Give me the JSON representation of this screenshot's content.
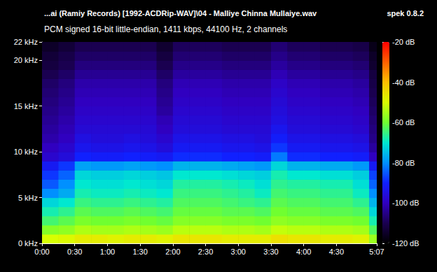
{
  "chart_data": {
    "type": "heatmap",
    "title": "...ai (Ramiy Records) [1992-ACDRip-WAV]\\04 - Malliye Chinna Mullaiye.wav",
    "subtitle": "PCM signed 16-bit little-endian, 1411 kbps, 44100 Hz, 2 channels",
    "annotations": [
      "spek 0.8.2"
    ],
    "grid": false,
    "xlim": [
      0,
      307
    ],
    "xticks": [
      {
        "value": 0,
        "label": "0:00"
      },
      {
        "value": 30,
        "label": "0:30"
      },
      {
        "value": 60,
        "label": "1:00"
      },
      {
        "value": 90,
        "label": "1:30"
      },
      {
        "value": 120,
        "label": "2:00"
      },
      {
        "value": 150,
        "label": "2:30"
      },
      {
        "value": 180,
        "label": "3:00"
      },
      {
        "value": 210,
        "label": "3:30"
      },
      {
        "value": 240,
        "label": "4:00"
      },
      {
        "value": 270,
        "label": "4:30"
      },
      {
        "value": 307,
        "label": "5:07"
      }
    ],
    "ylim": [
      0,
      22
    ],
    "yticks": [
      {
        "value": 0,
        "label": "0 kHz"
      },
      {
        "value": 5,
        "label": "5 kHz"
      },
      {
        "value": 10,
        "label": "10 kHz"
      },
      {
        "value": 15,
        "label": "15 kHz"
      },
      {
        "value": 20,
        "label": "20 kHz"
      },
      {
        "value": 22,
        "label": "22 kHz"
      }
    ],
    "colorbar_range": [
      -120,
      -20
    ],
    "colorbar_ticks": [
      {
        "value": -20,
        "label": "-20 dB"
      },
      {
        "value": -40,
        "label": "-40 dB"
      },
      {
        "value": -60,
        "label": "-60 dB"
      },
      {
        "value": -80,
        "label": "-80 dB"
      },
      {
        "value": -100,
        "label": "-100 dB"
      },
      {
        "value": -120,
        "label": "-120 dB"
      }
    ],
    "time_bins": [
      0,
      15,
      30,
      45,
      60,
      75,
      90,
      105,
      120,
      135,
      150,
      165,
      180,
      195,
      210,
      225,
      240,
      255,
      270,
      285,
      300,
      307
    ],
    "freq_bins": [
      0,
      1,
      2,
      3,
      4,
      5,
      6,
      7,
      8,
      9,
      10,
      11,
      12,
      13,
      14,
      15,
      16,
      17,
      18,
      19,
      20,
      21,
      22
    ],
    "cells": [
      [
        -50,
        -49,
        -47,
        -47,
        -48,
        -47,
        -47,
        -48,
        -46,
        -46,
        -46,
        -47,
        -47,
        -47,
        -45,
        -46,
        -46,
        -47,
        -47,
        -48,
        -56
      ],
      [
        -58,
        -57,
        -54,
        -55,
        -55,
        -54,
        -55,
        -56,
        -53,
        -53,
        -53,
        -54,
        -54,
        -55,
        -52,
        -53,
        -53,
        -54,
        -54,
        -55,
        -63
      ],
      [
        -64,
        -62,
        -59,
        -60,
        -60,
        -59,
        -60,
        -61,
        -58,
        -58,
        -58,
        -59,
        -59,
        -60,
        -57,
        -58,
        -58,
        -59,
        -59,
        -60,
        -68
      ],
      [
        -68,
        -66,
        -62,
        -63,
        -63,
        -62,
        -63,
        -64,
        -61,
        -61,
        -61,
        -62,
        -62,
        -63,
        -60,
        -61,
        -61,
        -62,
        -62,
        -63,
        -72
      ],
      [
        -72,
        -70,
        -65,
        -66,
        -66,
        -65,
        -66,
        -67,
        -63,
        -63,
        -63,
        -64,
        -65,
        -66,
        -62,
        -63,
        -63,
        -64,
        -64,
        -66,
        -76
      ],
      [
        -80,
        -77,
        -68,
        -69,
        -69,
        -68,
        -69,
        -70,
        -65,
        -65,
        -65,
        -66,
        -67,
        -69,
        -64,
        -65,
        -65,
        -66,
        -66,
        -69,
        -80
      ],
      [
        -85,
        -80,
        -70,
        -71,
        -71,
        -70,
        -71,
        -72,
        -67,
        -67,
        -67,
        -68,
        -69,
        -71,
        -66,
        -67,
        -67,
        -68,
        -68,
        -71,
        -84
      ],
      [
        -88,
        -84,
        -72,
        -73,
        -73,
        -72,
        -73,
        -74,
        -70,
        -70,
        -70,
        -71,
        -72,
        -73,
        -68,
        -70,
        -70,
        -71,
        -71,
        -73,
        -87
      ],
      [
        -92,
        -88,
        -78,
        -79,
        -79,
        -78,
        -79,
        -80,
        -76,
        -76,
        -76,
        -77,
        -78,
        -79,
        -72,
        -76,
        -76,
        -77,
        -77,
        -79,
        -92
      ],
      [
        -98,
        -96,
        -90,
        -91,
        -91,
        -90,
        -91,
        -92,
        -89,
        -89,
        -89,
        -90,
        -90,
        -91,
        -82,
        -89,
        -89,
        -90,
        -90,
        -91,
        -100
      ],
      [
        -100,
        -98,
        -93,
        -94,
        -94,
        -93,
        -94,
        -96,
        -92,
        -92,
        -92,
        -93,
        -93,
        -94,
        -88,
        -92,
        -92,
        -93,
        -93,
        -94,
        -103
      ],
      [
        -102,
        -100,
        -95,
        -96,
        -96,
        -95,
        -96,
        -98,
        -94,
        -94,
        -94,
        -95,
        -95,
        -96,
        -91,
        -94,
        -94,
        -95,
        -95,
        -96,
        -105
      ],
      [
        -103,
        -101,
        -97,
        -97,
        -97,
        -97,
        -97,
        -100,
        -96,
        -96,
        -96,
        -97,
        -97,
        -97,
        -93,
        -96,
        -96,
        -97,
        -97,
        -98,
        -106
      ],
      [
        -104,
        -102,
        -98,
        -98,
        -98,
        -98,
        -98,
        -101,
        -97,
        -97,
        -97,
        -98,
        -98,
        -98,
        -95,
        -97,
        -97,
        -98,
        -98,
        -99,
        -107
      ],
      [
        -105,
        -103,
        -99,
        -99,
        -99,
        -99,
        -99,
        -103,
        -98,
        -98,
        -98,
        -99,
        -99,
        -99,
        -96,
        -98,
        -98,
        -99,
        -99,
        -100,
        -108
      ],
      [
        -106,
        -104,
        -100,
        -100,
        -100,
        -100,
        -100,
        -104,
        -99,
        -99,
        -99,
        -100,
        -100,
        -100,
        -97,
        -99,
        -99,
        -100,
        -100,
        -101,
        -109
      ],
      [
        -107,
        -105,
        -101,
        -101,
        -101,
        -101,
        -101,
        -105,
        -100,
        -100,
        -100,
        -101,
        -101,
        -101,
        -98,
        -100,
        -100,
        -101,
        -101,
        -102,
        -110
      ],
      [
        -108,
        -106,
        -102,
        -102,
        -102,
        -102,
        -102,
        -106,
        -101,
        -101,
        -101,
        -102,
        -102,
        -102,
        -99,
        -101,
        -101,
        -102,
        -102,
        -103,
        -111
      ],
      [
        -110,
        -108,
        -104,
        -104,
        -104,
        -104,
        -104,
        -108,
        -103,
        -103,
        -103,
        -104,
        -104,
        -104,
        -101,
        -103,
        -103,
        -104,
        -104,
        -105,
        -112
      ],
      [
        -112,
        -110,
        -106,
        -106,
        -106,
        -106,
        -106,
        -110,
        -105,
        -105,
        -105,
        -106,
        -106,
        -106,
        -103,
        -105,
        -105,
        -106,
        -106,
        -107,
        -114
      ],
      [
        -113,
        -111,
        -108,
        -108,
        -108,
        -108,
        -108,
        -112,
        -107,
        -107,
        -107,
        -108,
        -108,
        -108,
        -105,
        -107,
        -107,
        -108,
        -108,
        -109,
        -115
      ],
      [
        -115,
        -113,
        -110,
        -110,
        -110,
        -110,
        -110,
        -114,
        -109,
        -109,
        -109,
        -110,
        -110,
        -110,
        -107,
        -109,
        -109,
        -110,
        -110,
        -111,
        -117
      ]
    ]
  }
}
